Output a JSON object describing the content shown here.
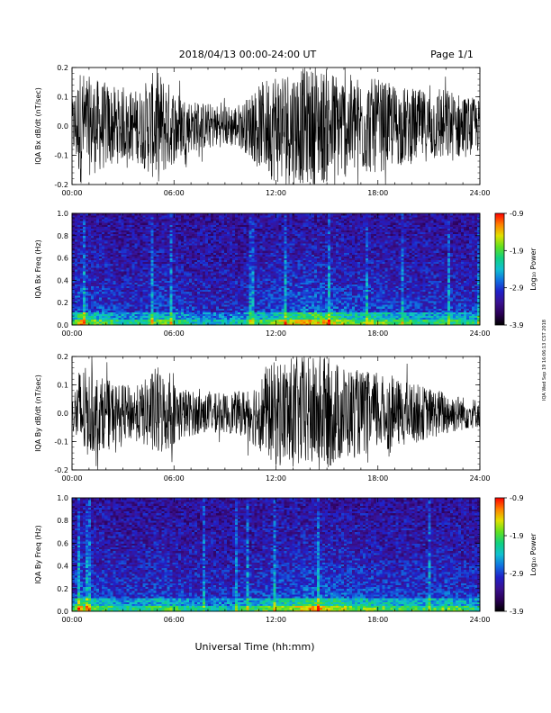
{
  "header": {
    "title": "2018/04/13  00:00-24:00 UT",
    "page": "Page 1/1"
  },
  "footer": {
    "xlabel": "Universal Time (hh:mm)"
  },
  "side_note": "IQA  Wed Sep 19 16:06:13 CST 2018",
  "colors": {
    "spectrogram_scale": [
      "#000000",
      "#2a0055",
      "#3a1190",
      "#2020c8",
      "#1070e0",
      "#10c0d0",
      "#10d080",
      "#60e020",
      "#e0e000",
      "#ff8000",
      "#ff0000"
    ],
    "wave": "#000000"
  },
  "chart_data": [
    {
      "type": "line",
      "name": "bx-wave",
      "ylabel": "IQA Bx dB/dt (nT/sec)",
      "ylim": [
        -0.2,
        0.2
      ],
      "yticks": [
        "0.2",
        "0.1",
        "0.0",
        "-0.1",
        "-0.2"
      ],
      "xticks": [
        "00:00",
        "06:00",
        "12:00",
        "18:00",
        "24:00"
      ],
      "xlim": [
        0,
        24
      ],
      "x_unit": "hours UT",
      "envelope": [
        {
          "x": 0,
          "amp": 0.09
        },
        {
          "x": 0.5,
          "amp": 0.2
        },
        {
          "x": 1,
          "amp": 0.17
        },
        {
          "x": 2,
          "amp": 0.15
        },
        {
          "x": 3,
          "amp": 0.12
        },
        {
          "x": 4,
          "amp": 0.13
        },
        {
          "x": 5,
          "amp": 0.2
        },
        {
          "x": 6,
          "amp": 0.13
        },
        {
          "x": 7,
          "amp": 0.09
        },
        {
          "x": 8,
          "amp": 0.08
        },
        {
          "x": 9,
          "amp": 0.07
        },
        {
          "x": 10,
          "amp": 0.08
        },
        {
          "x": 11,
          "amp": 0.14
        },
        {
          "x": 12,
          "amp": 0.2
        },
        {
          "x": 13,
          "amp": 0.2
        },
        {
          "x": 14,
          "amp": 0.2
        },
        {
          "x": 15,
          "amp": 0.2
        },
        {
          "x": 16,
          "amp": 0.18
        },
        {
          "x": 17,
          "amp": 0.17
        },
        {
          "x": 18,
          "amp": 0.16
        },
        {
          "x": 19,
          "amp": 0.14
        },
        {
          "x": 20,
          "amp": 0.13
        },
        {
          "x": 21,
          "amp": 0.12
        },
        {
          "x": 22,
          "amp": 0.13
        },
        {
          "x": 23,
          "amp": 0.11
        },
        {
          "x": 24,
          "amp": 0.09
        }
      ]
    },
    {
      "type": "heatmap",
      "name": "bx-spectrogram",
      "ylabel": "IQA Bx Freq (Hz)",
      "ylim": [
        0.0,
        1.0
      ],
      "yticks": [
        "1.0",
        "0.8",
        "0.6",
        "0.4",
        "0.2",
        "0.0"
      ],
      "xticks": [
        "00:00",
        "06:00",
        "12:00",
        "18:00",
        "24:00"
      ],
      "xlim": [
        0,
        24
      ],
      "colorbar": {
        "label": "Log₁₀ Power",
        "ticks": [
          "-0.9",
          "-1.9",
          "-2.9",
          "-3.9"
        ],
        "range": [
          -3.9,
          -0.9
        ]
      },
      "activity": [
        {
          "x": 0,
          "level": 0.45
        },
        {
          "x": 0.5,
          "level": 0.75
        },
        {
          "x": 1,
          "level": 0.55
        },
        {
          "x": 2,
          "level": 0.5
        },
        {
          "x": 3,
          "level": 0.4
        },
        {
          "x": 4,
          "level": 0.42
        },
        {
          "x": 5,
          "level": 0.55
        },
        {
          "x": 6,
          "level": 0.5
        },
        {
          "x": 7,
          "level": 0.38
        },
        {
          "x": 8,
          "level": 0.35
        },
        {
          "x": 9,
          "level": 0.35
        },
        {
          "x": 10,
          "level": 0.4
        },
        {
          "x": 11,
          "level": 0.5
        },
        {
          "x": 12,
          "level": 0.6
        },
        {
          "x": 13,
          "level": 0.65
        },
        {
          "x": 14,
          "level": 0.75
        },
        {
          "x": 15,
          "level": 0.7
        },
        {
          "x": 16,
          "level": 0.6
        },
        {
          "x": 17,
          "level": 0.55
        },
        {
          "x": 18,
          "level": 0.58
        },
        {
          "x": 19,
          "level": 0.5
        },
        {
          "x": 20,
          "level": 0.48
        },
        {
          "x": 21,
          "level": 0.45
        },
        {
          "x": 22,
          "level": 0.5
        },
        {
          "x": 23,
          "level": 0.45
        },
        {
          "x": 24,
          "level": 0.42
        }
      ]
    },
    {
      "type": "line",
      "name": "by-wave",
      "ylabel": "IQA By dB/dt (nT/sec)",
      "ylim": [
        -0.2,
        0.2
      ],
      "yticks": [
        "0.2",
        "0.1",
        "0.0",
        "-0.1",
        "-0.2"
      ],
      "xticks": [
        "00:00",
        "06:00",
        "12:00",
        "18:00",
        "24:00"
      ],
      "xlim": [
        0,
        24
      ],
      "x_unit": "hours UT",
      "envelope": [
        {
          "x": 0,
          "amp": 0.05
        },
        {
          "x": 0.5,
          "amp": 0.18
        },
        {
          "x": 1,
          "amp": 0.15
        },
        {
          "x": 2,
          "amp": 0.12
        },
        {
          "x": 3,
          "amp": 0.1
        },
        {
          "x": 4,
          "amp": 0.1
        },
        {
          "x": 5,
          "amp": 0.17
        },
        {
          "x": 6,
          "amp": 0.11
        },
        {
          "x": 7,
          "amp": 0.08
        },
        {
          "x": 8,
          "amp": 0.07
        },
        {
          "x": 9,
          "amp": 0.07
        },
        {
          "x": 10,
          "amp": 0.08
        },
        {
          "x": 11,
          "amp": 0.13
        },
        {
          "x": 12,
          "amp": 0.19
        },
        {
          "x": 13,
          "amp": 0.2
        },
        {
          "x": 14,
          "amp": 0.2
        },
        {
          "x": 15,
          "amp": 0.2
        },
        {
          "x": 16,
          "amp": 0.17
        },
        {
          "x": 17,
          "amp": 0.15
        },
        {
          "x": 18,
          "amp": 0.14
        },
        {
          "x": 19,
          "amp": 0.12
        },
        {
          "x": 20,
          "amp": 0.11
        },
        {
          "x": 21,
          "amp": 0.09
        },
        {
          "x": 22,
          "amp": 0.08
        },
        {
          "x": 23,
          "amp": 0.06
        },
        {
          "x": 24,
          "amp": 0.05
        }
      ]
    },
    {
      "type": "heatmap",
      "name": "by-spectrogram",
      "ylabel": "IQA By Freq (Hz)",
      "ylim": [
        0.0,
        1.0
      ],
      "yticks": [
        "1.0",
        "0.8",
        "0.6",
        "0.4",
        "0.2",
        "0.0"
      ],
      "xticks": [
        "00:00",
        "06:00",
        "12:00",
        "18:00",
        "24:00"
      ],
      "xlim": [
        0,
        24
      ],
      "colorbar": {
        "label": "Log₁₀ Power",
        "ticks": [
          "-0.9",
          "-1.9",
          "-2.9",
          "-3.9"
        ],
        "range": [
          -3.9,
          -0.9
        ]
      },
      "activity": [
        {
          "x": 0,
          "level": 0.45
        },
        {
          "x": 0.5,
          "level": 0.72
        },
        {
          "x": 1,
          "level": 0.55
        },
        {
          "x": 2,
          "level": 0.5
        },
        {
          "x": 3,
          "level": 0.42
        },
        {
          "x": 4,
          "level": 0.42
        },
        {
          "x": 5,
          "level": 0.52
        },
        {
          "x": 6,
          "level": 0.5
        },
        {
          "x": 7,
          "level": 0.4
        },
        {
          "x": 8,
          "level": 0.36
        },
        {
          "x": 9,
          "level": 0.36
        },
        {
          "x": 10,
          "level": 0.42
        },
        {
          "x": 11,
          "level": 0.5
        },
        {
          "x": 12,
          "level": 0.6
        },
        {
          "x": 13,
          "level": 0.62
        },
        {
          "x": 14,
          "level": 0.72
        },
        {
          "x": 15,
          "level": 0.7
        },
        {
          "x": 16,
          "level": 0.6
        },
        {
          "x": 17,
          "level": 0.55
        },
        {
          "x": 18,
          "level": 0.55
        },
        {
          "x": 19,
          "level": 0.5
        },
        {
          "x": 20,
          "level": 0.5
        },
        {
          "x": 21,
          "level": 0.45
        },
        {
          "x": 22,
          "level": 0.55
        },
        {
          "x": 23,
          "level": 0.48
        },
        {
          "x": 24,
          "level": 0.44
        }
      ]
    }
  ]
}
